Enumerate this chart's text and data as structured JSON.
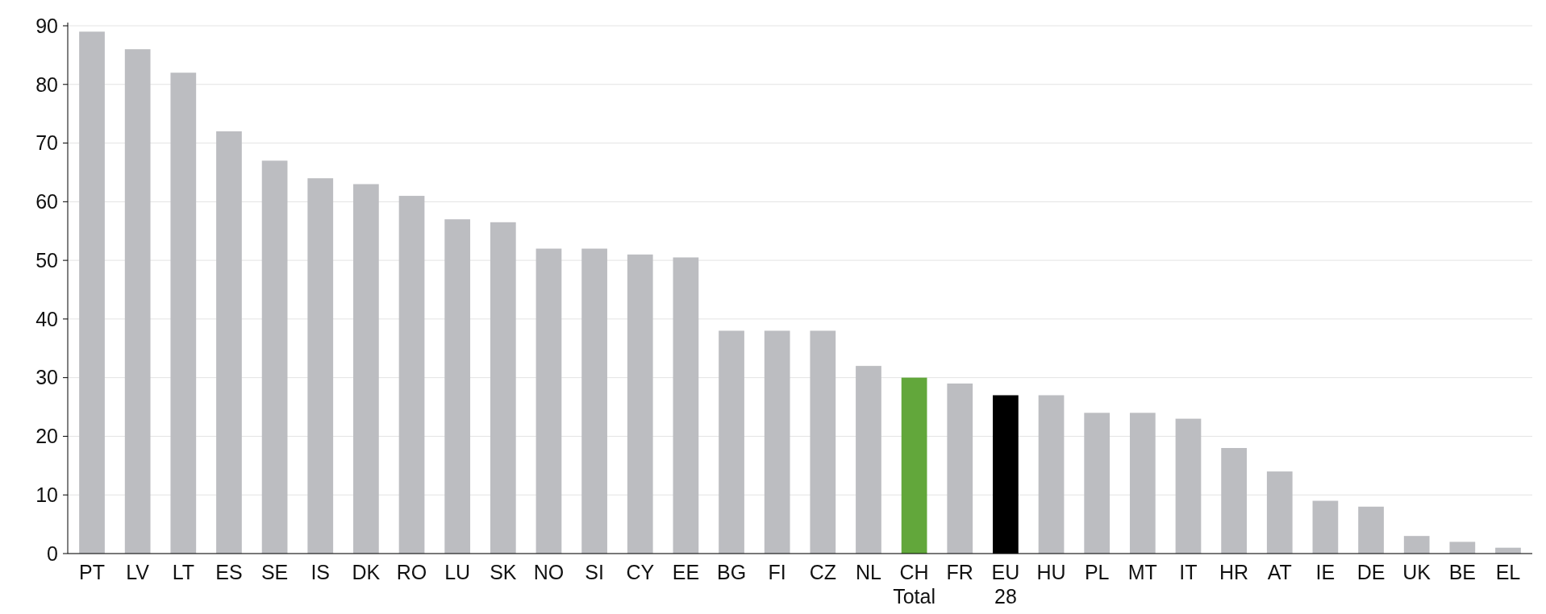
{
  "chart_data": {
    "type": "bar",
    "categories": [
      "PT",
      "LV",
      "LT",
      "ES",
      "SE",
      "IS",
      "DK",
      "RO",
      "LU",
      "SK",
      "NO",
      "SI",
      "CY",
      "EE",
      "BG",
      "FI",
      "CZ",
      "NL",
      "CH Total",
      "FR",
      "EU 28",
      "HU",
      "PL",
      "MT",
      "IT",
      "HR",
      "AT",
      "IE",
      "DE",
      "UK",
      "BE",
      "EL"
    ],
    "values": [
      89,
      86,
      82,
      72,
      67,
      64,
      63,
      61,
      57,
      56.5,
      52,
      52,
      51,
      50.5,
      38,
      38,
      38,
      32,
      30,
      29,
      27,
      27,
      24,
      24,
      23,
      18,
      14,
      9,
      8,
      3,
      2,
      1
    ],
    "colors": [
      "#bcbdc1",
      "#bcbdc1",
      "#bcbdc1",
      "#bcbdc1",
      "#bcbdc1",
      "#bcbdc1",
      "#bcbdc1",
      "#bcbdc1",
      "#bcbdc1",
      "#bcbdc1",
      "#bcbdc1",
      "#bcbdc1",
      "#bcbdc1",
      "#bcbdc1",
      "#bcbdc1",
      "#bcbdc1",
      "#bcbdc1",
      "#bcbdc1",
      "#62a73b",
      "#bcbdc1",
      "#000000",
      "#bcbdc1",
      "#bcbdc1",
      "#bcbdc1",
      "#bcbdc1",
      "#bcbdc1",
      "#bcbdc1",
      "#bcbdc1",
      "#bcbdc1",
      "#bcbdc1",
      "#bcbdc1",
      "#bcbdc1"
    ],
    "ylim": [
      0,
      90
    ],
    "yticks": [
      0,
      10,
      20,
      30,
      40,
      50,
      60,
      70,
      80,
      90
    ],
    "grid": "y"
  }
}
